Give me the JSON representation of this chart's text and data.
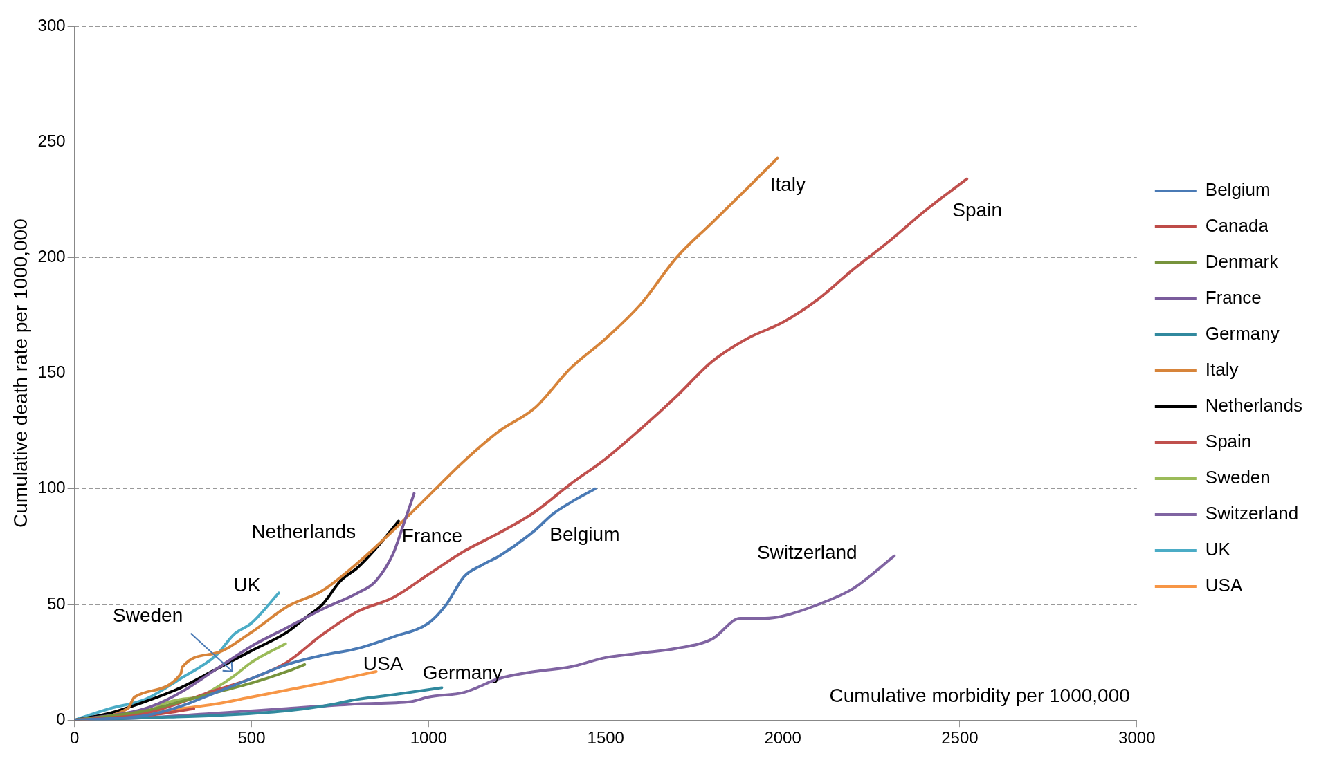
{
  "chart_data": {
    "type": "line",
    "xlabel": "Cumulative morbidity per 1000,000",
    "ylabel": "Cumulative death rate per 1000,000",
    "xlim": [
      0,
      3000
    ],
    "xticks": [
      0,
      500,
      1000,
      1500,
      2000,
      2500,
      3000
    ],
    "ylim": [
      0,
      300
    ],
    "yticks": [
      0,
      50,
      100,
      150,
      200,
      250,
      300
    ],
    "grid": "y",
    "legend": "right",
    "marker": "none",
    "line_style": "solid",
    "series": [
      {
        "name": "Belgium",
        "color": "#4a7ab5",
        "x": [
          0,
          200,
          300,
          400,
          500,
          600,
          700,
          800,
          900,
          1000,
          1050,
          1100,
          1150,
          1200,
          1300,
          1350,
          1400,
          1470
        ],
        "values": [
          0,
          2,
          6,
          12,
          18,
          24,
          28,
          31,
          36,
          42,
          50,
          62,
          67,
          71,
          82,
          89,
          94,
          100
        ]
      },
      {
        "name": "Canada",
        "color": "#be4b48",
        "x": [
          0,
          100,
          200,
          300,
          337
        ],
        "values": [
          0,
          1,
          2,
          4,
          5
        ]
      },
      {
        "name": "Denmark",
        "color": "#77933c",
        "x": [
          0,
          200,
          300,
          400,
          500,
          600,
          650
        ],
        "values": [
          0,
          4,
          8,
          12,
          16,
          21,
          24
        ]
      },
      {
        "name": "France",
        "color": "#7a5c9c",
        "x": [
          0,
          200,
          300,
          400,
          500,
          600,
          700,
          800,
          850,
          900,
          930,
          959
        ],
        "values": [
          0,
          5,
          12,
          22,
          32,
          40,
          48,
          55,
          60,
          72,
          85,
          98
        ]
      },
      {
        "name": "Germany",
        "color": "#31899e",
        "x": [
          0,
          200,
          400,
          600,
          700,
          800,
          900,
          1037
        ],
        "values": [
          0,
          1,
          2,
          4,
          6,
          9,
          11,
          14
        ]
      },
      {
        "name": "Italy",
        "color": "#d7843a",
        "x": [
          0,
          150,
          170,
          300,
          305,
          400,
          500,
          600,
          700,
          800,
          900,
          1000,
          1100,
          1200,
          1300,
          1400,
          1500,
          1600,
          1700,
          1800,
          1900,
          1985
        ],
        "values": [
          0,
          5,
          10,
          20,
          23,
          29,
          38,
          49,
          56,
          68,
          82,
          97,
          112,
          125,
          135,
          152,
          165,
          180,
          200,
          215,
          230,
          243
        ]
      },
      {
        "name": "Netherlands",
        "color": "#000000",
        "x": [
          0,
          100,
          200,
          300,
          400,
          500,
          600,
          650,
          700,
          750,
          800,
          850,
          915
        ],
        "values": [
          0,
          3,
          8,
          14,
          22,
          30,
          38,
          44,
          50,
          60,
          66,
          74,
          86
        ]
      },
      {
        "name": "Spain",
        "color": "#c0504d",
        "x": [
          0,
          200,
          400,
          500,
          600,
          700,
          800,
          900,
          1000,
          1100,
          1200,
          1300,
          1400,
          1500,
          1600,
          1700,
          1800,
          1900,
          2000,
          2100,
          2200,
          2300,
          2400,
          2520
        ],
        "values": [
          0,
          3,
          13,
          18,
          25,
          37,
          47,
          53,
          63,
          73,
          81,
          90,
          102,
          113,
          126,
          140,
          155,
          165,
          172,
          182,
          195,
          207,
          220,
          234
        ]
      },
      {
        "name": "Sweden",
        "color": "#9bbb59",
        "x": [
          0,
          200,
          250,
          300,
          350,
          400,
          450,
          500,
          596
        ],
        "values": [
          0,
          3,
          7,
          9,
          10,
          14,
          19,
          25,
          33
        ]
      },
      {
        "name": "Switzerland",
        "color": "#8064a2",
        "x": [
          0,
          200,
          400,
          600,
          800,
          950,
          1000,
          1100,
          1200,
          1300,
          1400,
          1500,
          1600,
          1700,
          1800,
          1880,
          1950,
          2000,
          2100,
          2200,
          2315
        ],
        "values": [
          0,
          1,
          3,
          5,
          7,
          8,
          10,
          12,
          18,
          21,
          23,
          27,
          29,
          31,
          35,
          44,
          44,
          45,
          50,
          57,
          71
        ]
      },
      {
        "name": "UK",
        "color": "#4bacc6",
        "x": [
          0,
          100,
          200,
          300,
          400,
          450,
          500,
          577
        ],
        "values": [
          0,
          5,
          9,
          18,
          28,
          37,
          42,
          55
        ]
      },
      {
        "name": "USA",
        "color": "#f79646",
        "x": [
          0,
          200,
          300,
          400,
          500,
          600,
          700,
          852
        ],
        "values": [
          0,
          3,
          5,
          7,
          10,
          13,
          16,
          21
        ]
      }
    ],
    "annotations": [
      "Italy",
      "Spain",
      "Netherlands",
      "France",
      "Belgium",
      "Switzerland",
      "UK",
      "Sweden",
      "USA",
      "Germany"
    ]
  }
}
